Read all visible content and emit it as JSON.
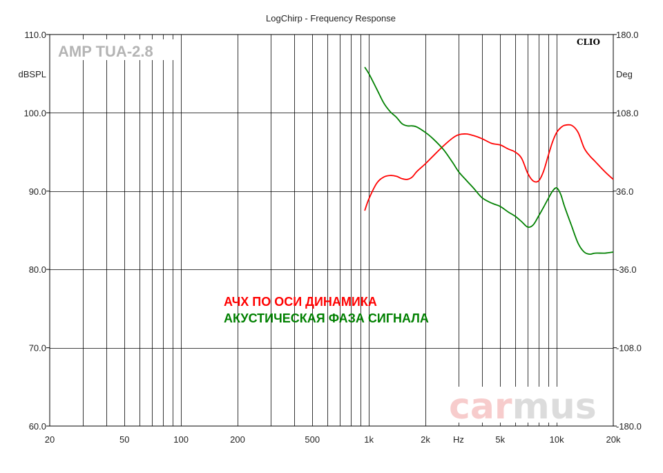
{
  "chart_data": {
    "type": "line",
    "title": "LogChirp - Frequency Response",
    "xlabel": "Hz",
    "ylabel": "dBSPL",
    "y2label": "Deg",
    "xscale": "log",
    "xlim": [
      20,
      20000
    ],
    "ylim": [
      60,
      110
    ],
    "y2lim": [
      -180,
      180
    ],
    "grid": true,
    "x_ticks": [
      {
        "value": 20,
        "label": "20"
      },
      {
        "value": 50,
        "label": "50"
      },
      {
        "value": 100,
        "label": "100"
      },
      {
        "value": 200,
        "label": "200"
      },
      {
        "value": 500,
        "label": "500"
      },
      {
        "value": 1000,
        "label": "1k"
      },
      {
        "value": 2000,
        "label": "2k"
      },
      {
        "value": 3000,
        "label": "Hz"
      },
      {
        "value": 5000,
        "label": "5k"
      },
      {
        "value": 10000,
        "label": "10k"
      },
      {
        "value": 20000,
        "label": "20k"
      }
    ],
    "y_ticks": [
      {
        "value": 110,
        "label": "110.0"
      },
      {
        "value": 100,
        "label": "100.0"
      },
      {
        "value": 90,
        "label": "90.0"
      },
      {
        "value": 80,
        "label": "80.0"
      },
      {
        "value": 70,
        "label": "70.0"
      },
      {
        "value": 60,
        "label": "60.0"
      }
    ],
    "y2_ticks": [
      {
        "value": 180,
        "label": "180.0"
      },
      {
        "value": 108,
        "label": "108.0"
      },
      {
        "value": 36,
        "label": "36.0"
      },
      {
        "value": -36,
        "label": "-36.0"
      },
      {
        "value": -108,
        "label": "-108.0"
      },
      {
        "value": -180,
        "label": "-180.0"
      }
    ],
    "series": [
      {
        "name": "АЧХ ПО ОСИ ДИНАМИКА",
        "axis": "left",
        "color": "#ff0000",
        "x": [
          950,
          1000,
          1100,
          1200,
          1300,
          1400,
          1500,
          1600,
          1700,
          1800,
          2000,
          2200,
          2500,
          2800,
          3000,
          3300,
          3600,
          4000,
          4500,
          5000,
          5500,
          6000,
          6500,
          7000,
          7500,
          8000,
          8500,
          9000,
          9500,
          10000,
          10500,
          11000,
          12000,
          13000,
          14000,
          15000,
          16000,
          18000,
          20000
        ],
        "y": [
          87.5,
          89.0,
          91.0,
          91.8,
          92.0,
          91.9,
          91.6,
          91.5,
          91.8,
          92.5,
          93.5,
          94.5,
          95.8,
          96.8,
          97.2,
          97.3,
          97.1,
          96.7,
          96.1,
          95.9,
          95.4,
          95.0,
          94.2,
          92.3,
          91.3,
          91.3,
          92.5,
          94.5,
          96.3,
          97.5,
          98.1,
          98.4,
          98.4,
          97.5,
          95.5,
          94.5,
          93.8,
          92.5,
          91.5
        ]
      },
      {
        "name": "АКУСТИЧЕСКАЯ ФАЗА СИГНАЛА",
        "axis": "right",
        "color": "#008000",
        "x": [
          950,
          1000,
          1100,
          1200,
          1300,
          1400,
          1500,
          1600,
          1700,
          1800,
          2000,
          2200,
          2500,
          2800,
          3000,
          3300,
          3600,
          4000,
          4500,
          5000,
          5500,
          6000,
          6500,
          7000,
          7500,
          8000,
          8500,
          9000,
          9500,
          10000,
          10500,
          11000,
          12000,
          13000,
          14000,
          15000,
          16000,
          18000,
          20000
        ],
        "y": [
          150,
          144,
          130,
          117,
          109,
          104,
          98,
          96,
          96,
          95,
          90,
          84,
          74,
          62,
          54,
          46,
          39,
          30,
          25,
          22,
          17,
          13,
          8,
          3,
          5,
          13,
          21,
          29,
          36,
          39,
          33,
          22,
          4,
          -12,
          -20,
          -22,
          -21,
          -21,
          -20
        ]
      }
    ],
    "annotations": {
      "model": "AMP TUA-2.8",
      "brand": "CLIO",
      "watermark_a": "car",
      "watermark_b": "mus"
    },
    "colors": {
      "grid": "#000000",
      "watermark_a": "#f7cccc",
      "watermark_b": "#dcdcdc"
    }
  }
}
